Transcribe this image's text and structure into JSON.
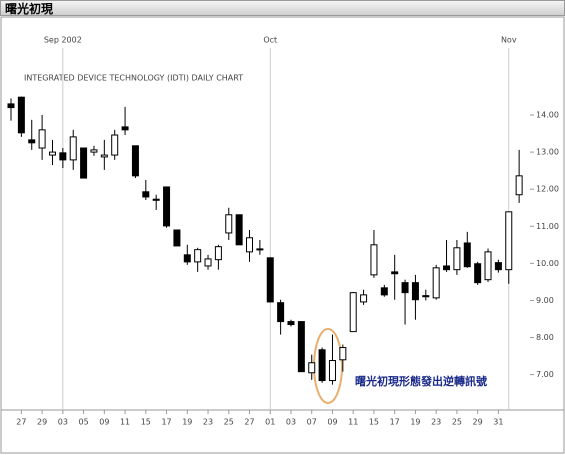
{
  "header": {
    "title": "曙光初現"
  },
  "chart_data": {
    "type": "candlestick",
    "title": "INTEGRATED DEVICE TECHNOLOGY (IDTI) DAILY CHART",
    "month_labels": [
      "Sep 2002",
      "Oct",
      "Nov"
    ],
    "annotation": "曙光初現形態發出逆轉訊號",
    "categories": [
      null,
      "27",
      null,
      "29",
      null,
      "03",
      null,
      "05",
      null,
      "09",
      null,
      "11",
      null,
      "15",
      null,
      "17",
      null,
      "19",
      null,
      "23",
      null,
      "25",
      null,
      "27",
      null,
      "01",
      null,
      "03",
      null,
      "07",
      null,
      "09",
      null,
      "11",
      null,
      "15",
      null,
      "17",
      null,
      "19",
      null,
      "23",
      null,
      "25",
      null,
      "29",
      null,
      "31",
      null,
      null
    ],
    "open": [
      14.3,
      14.48,
      13.33,
      13.11,
      12.92,
      12.98,
      12.79,
      13.11,
      13.0,
      12.87,
      12.92,
      13.68,
      13.17,
      11.93,
      11.73,
      12.06,
      10.9,
      10.23,
      10.04,
      9.93,
      10.1,
      10.82,
      11.31,
      10.31,
      10.39,
      10.15,
      8.94,
      8.43,
      8.43,
      7.05,
      7.67,
      6.84,
      7.4,
      8.16,
      8.96,
      9.69,
      9.34,
      9.77,
      9.48,
      9.48,
      9.13,
      9.07,
      9.93,
      9.83,
      10.55,
      9.99,
      9.56,
      10.02,
      9.83,
      11.85
    ],
    "high": [
      14.45,
      14.5,
      13.87,
      14.0,
      13.33,
      13.11,
      13.6,
      13.11,
      13.17,
      13.33,
      13.6,
      14.22,
      13.17,
      12.25,
      11.85,
      12.06,
      10.9,
      10.5,
      10.42,
      10.23,
      10.5,
      11.5,
      11.31,
      10.9,
      10.63,
      10.15,
      9.02,
      8.48,
      8.43,
      7.54,
      7.73,
      8.08,
      7.81,
      9.23,
      9.29,
      10.9,
      9.42,
      10.23,
      9.56,
      9.69,
      9.29,
      9.96,
      10.63,
      10.63,
      10.85,
      10.04,
      10.4,
      10.1,
      11.39,
      13.06
    ],
    "low": [
      13.85,
      13.41,
      13.06,
      12.79,
      12.65,
      12.57,
      12.52,
      12.3,
      12.9,
      12.52,
      12.79,
      13.46,
      12.3,
      11.71,
      11.44,
      10.96,
      10.47,
      9.96,
      9.77,
      9.83,
      9.83,
      10.63,
      10.5,
      10.04,
      10.23,
      8.96,
      8.08,
      8.3,
      7.08,
      6.86,
      6.78,
      6.73,
      7.08,
      8.16,
      8.88,
      9.61,
      9.1,
      9.02,
      8.35,
      8.48,
      9.0,
      9.02,
      9.77,
      9.69,
      9.88,
      9.42,
      9.5,
      9.75,
      9.45,
      11.63
    ],
    "close": [
      14.2,
      13.52,
      13.25,
      13.6,
      13.0,
      12.79,
      13.41,
      12.3,
      13.06,
      12.92,
      13.46,
      13.6,
      12.36,
      11.79,
      11.7,
      11.01,
      10.47,
      10.04,
      10.37,
      10.12,
      10.45,
      11.31,
      10.5,
      10.69,
      10.37,
      8.96,
      8.43,
      8.35,
      7.08,
      7.32,
      6.84,
      7.38,
      7.73,
      9.21,
      9.15,
      10.5,
      9.15,
      9.72,
      9.21,
      9.02,
      9.1,
      9.88,
      9.83,
      10.42,
      9.91,
      9.48,
      10.31,
      9.83,
      11.39,
      12.36
    ],
    "up_color": "#ffffff",
    "down_color": "#000000",
    "color": "#000000",
    "ylim": [
      6.1,
      16.4
    ],
    "yticks": [
      {
        "value": 14,
        "label": "14.00"
      },
      {
        "value": 13,
        "label": "13.00"
      },
      {
        "value": 12,
        "label": "12.00"
      },
      {
        "value": 11,
        "label": "11.00"
      },
      {
        "value": 10,
        "label": "10.00"
      },
      {
        "value": 9,
        "label": "9.00"
      },
      {
        "value": 8,
        "label": "8.00"
      },
      {
        "value": 7,
        "label": "7.00"
      }
    ]
  }
}
